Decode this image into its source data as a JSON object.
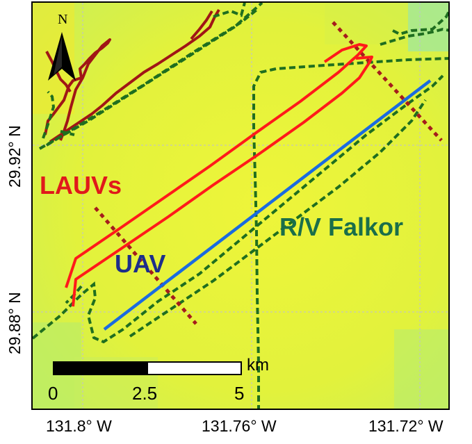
{
  "map": {
    "north_label": "N",
    "labels": {
      "lauvs": "LAUVs",
      "uav": "UAV",
      "rv": "R/V Falkor"
    },
    "lat_ticks": [
      "29.92° N",
      "29.88° N"
    ],
    "lon_ticks": [
      "131.8° W",
      "131.76° W",
      "131.72° W"
    ],
    "scale_bar": {
      "unit": "km",
      "ticks": [
        "0",
        "2.5",
        "5"
      ]
    },
    "colors": {
      "lauv_track": "#ff1a1a",
      "uav_track": "#1a6be0",
      "rv_track": "#1f6e1f",
      "prior_track": "#a01616",
      "sample_line": "#a51c1c",
      "lauv_label": "#e0191b",
      "uav_label": "#1c2e8a",
      "rv_label": "#1a6e4a",
      "background": "#e3f23a"
    }
  }
}
